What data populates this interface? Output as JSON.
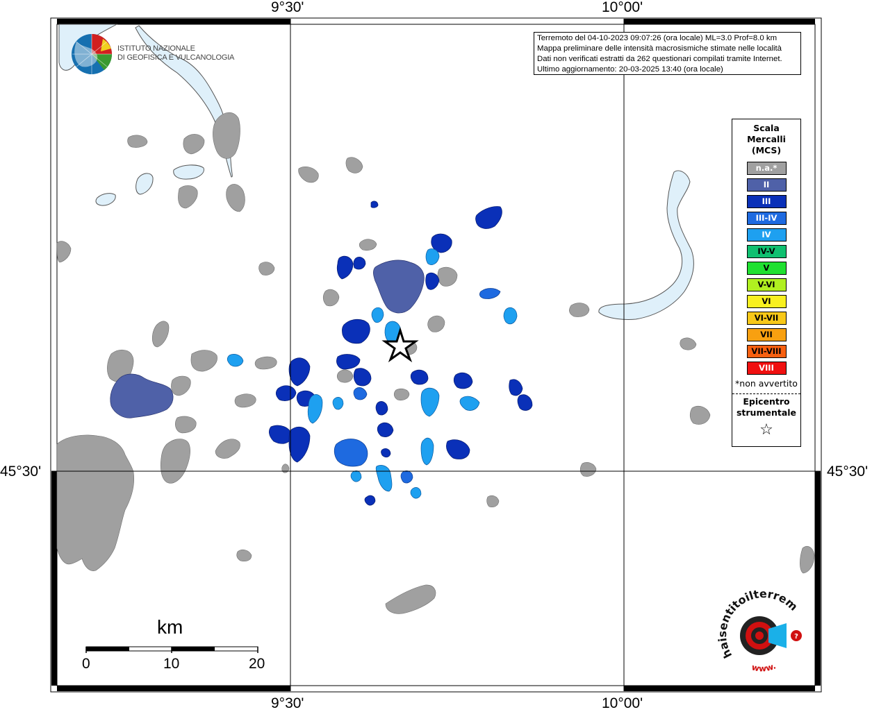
{
  "map_title_lines": [
    "Terremoto del 04-10-2023 09:07:26 (ora locale) ML=3.0 Prof=8.0 km",
    "Mappa preliminare delle intensità macrosismiche stimate nelle località",
    "Dati non verificati estratti da 262 questionari compilati tramite Internet.",
    "Ultimo aggiornamento: 20-03-2025 13:40 (ora locale)"
  ],
  "institute": {
    "line1": "ISTITUTO NAZIONALE",
    "line2": "DI GEOFISICA E VULCANOLOGIA"
  },
  "axis_labels": {
    "lon_left": "9°30'",
    "lon_right": "10°00'",
    "lat": "45°30'"
  },
  "legend": {
    "title_line1": "Scala",
    "title_line2": "Mercalli",
    "title_line3": "(MCS)",
    "items": [
      {
        "label": "n.a.*",
        "color": "#a0a0a0",
        "dark_text": false
      },
      {
        "label": "II",
        "color": "#4f61a8",
        "dark_text": false
      },
      {
        "label": "III",
        "color": "#0a30b8",
        "dark_text": false
      },
      {
        "label": "III-IV",
        "color": "#1e6ae0",
        "dark_text": false
      },
      {
        "label": "IV",
        "color": "#1ea0f0",
        "dark_text": false
      },
      {
        "label": "IV-V",
        "color": "#10c070",
        "dark_text": true
      },
      {
        "label": "V",
        "color": "#20e030",
        "dark_text": true
      },
      {
        "label": "V-VI",
        "color": "#b0f020",
        "dark_text": true
      },
      {
        "label": "VI",
        "color": "#f8f020",
        "dark_text": true
      },
      {
        "label": "VI-VII",
        "color": "#f8c818",
        "dark_text": true
      },
      {
        "label": "VII",
        "color": "#f8a010",
        "dark_text": true
      },
      {
        "label": "VII-VIII",
        "color": "#f86010",
        "dark_text": true
      },
      {
        "label": "VIII",
        "color": "#f01010",
        "dark_text": false
      }
    ],
    "note": "*non avvertito",
    "epicenter_line1": "Epicentro",
    "epicenter_line2": "strumentale",
    "epicenter_symbol": "☆"
  },
  "scale_bar": {
    "title": "km",
    "ticks": [
      "0",
      "10",
      "20"
    ]
  },
  "watermark": {
    "text_black": "haisentitoilterremoto",
    "text_red": ".it",
    "url_prefix": "www."
  },
  "colors": {
    "water": "#dff0fa",
    "no_data": "#a0a0a0",
    "intensity_II": "#4f61a8",
    "intensity_III": "#0a30b8",
    "intensity_III_IV": "#1e6ae0",
    "intensity_IV": "#1ea0f0"
  }
}
